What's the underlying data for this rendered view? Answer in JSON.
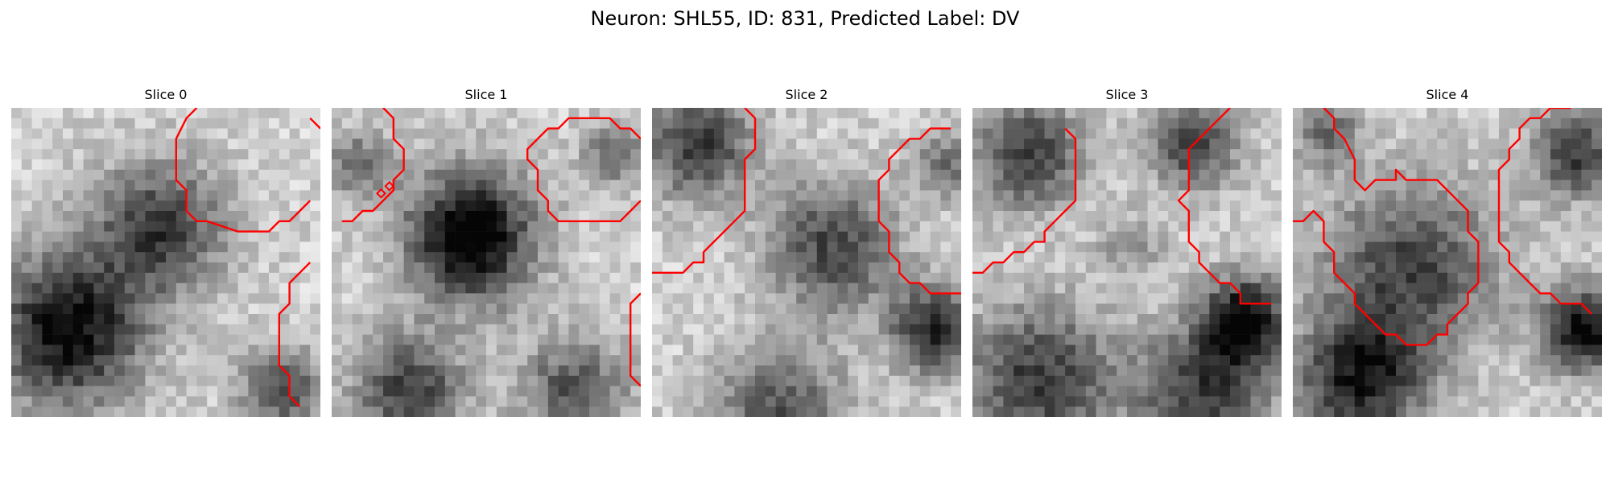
{
  "figure": {
    "title": "Neuron: SHL55, ID: 831, Predicted Label: DV",
    "contour_color": "#ff0000"
  },
  "slices": [
    {
      "title": "Slice 0"
    },
    {
      "title": "Slice 1"
    },
    {
      "title": "Slice 2"
    },
    {
      "title": "Slice 3"
    },
    {
      "title": "Slice 4"
    }
  ]
}
